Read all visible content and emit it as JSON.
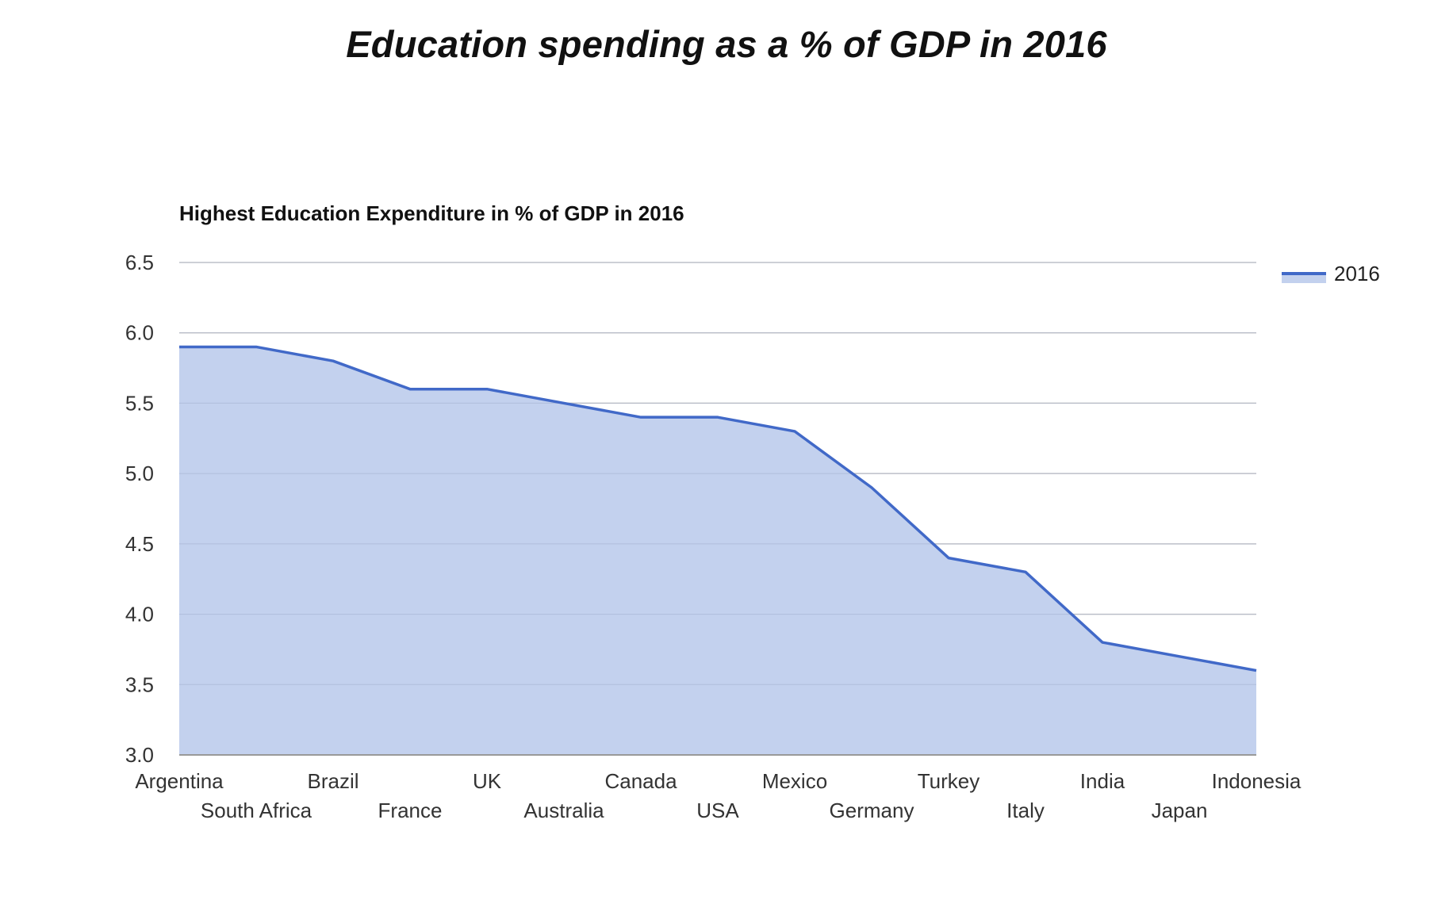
{
  "page_title": "Education spending as a % of GDP in 2016",
  "colors": {
    "line": "#4169c8",
    "area": "#c3d1ee",
    "grid": "#cccccc",
    "axis": "#999999"
  },
  "chart_data": {
    "type": "area",
    "title": "Highest Education Expenditure in % of GDP in 2016",
    "xlabel": "",
    "ylabel": "",
    "categories": [
      "Argentina",
      "South Africa",
      "Brazil",
      "France",
      "UK",
      "Australia",
      "Canada",
      "USA",
      "Mexico",
      "Germany",
      "Turkey",
      "Italy",
      "India",
      "Japan",
      "Indonesia"
    ],
    "series": [
      {
        "name": "2016",
        "values": [
          5.9,
          5.9,
          5.8,
          5.6,
          5.6,
          5.5,
          5.4,
          5.4,
          5.3,
          4.9,
          4.4,
          4.3,
          3.8,
          3.7,
          3.6
        ]
      }
    ],
    "ylim": [
      3.0,
      6.5
    ],
    "yticks": [
      "3.0",
      "3.5",
      "4.0",
      "4.5",
      "5.0",
      "5.5",
      "6.0",
      "6.5"
    ],
    "grid": true,
    "legend_position": "top-right"
  }
}
